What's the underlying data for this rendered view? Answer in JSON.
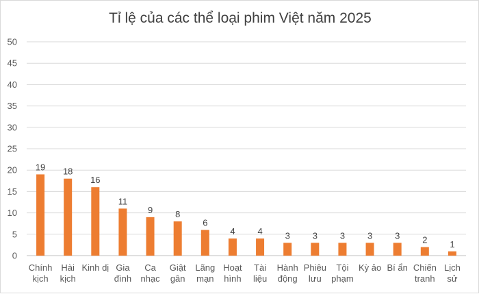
{
  "chart_data": {
    "type": "bar",
    "title": "Tỉ lệ của các thể loại phim Việt năm 2025",
    "xlabel": "",
    "ylabel": "",
    "ylim": [
      0,
      50
    ],
    "yticks": [
      0,
      5,
      10,
      15,
      20,
      25,
      30,
      35,
      40,
      45,
      50
    ],
    "grid": true,
    "legend": "none",
    "bar_color": "#ED7D31",
    "categories": [
      [
        "Chính",
        "kịch"
      ],
      [
        "Hài",
        "kịch"
      ],
      [
        "Kinh dị"
      ],
      [
        "Gia",
        "đình"
      ],
      [
        "Ca",
        "nhạc"
      ],
      [
        "Giật",
        "gân"
      ],
      [
        "Lãng",
        "mạn"
      ],
      [
        "Hoạt",
        "hình"
      ],
      [
        "Tài",
        "liệu"
      ],
      [
        "Hành",
        "động"
      ],
      [
        "Phiêu",
        "lưu"
      ],
      [
        "Tội",
        "phạm"
      ],
      [
        "Kỳ ảo"
      ],
      [
        "Bí ẩn"
      ],
      [
        "Chiến",
        "tranh"
      ],
      [
        "Lịch",
        "sử"
      ]
    ],
    "values": [
      19,
      18,
      16,
      11,
      9,
      8,
      6,
      4,
      4,
      3,
      3,
      3,
      3,
      3,
      2,
      1
    ]
  }
}
